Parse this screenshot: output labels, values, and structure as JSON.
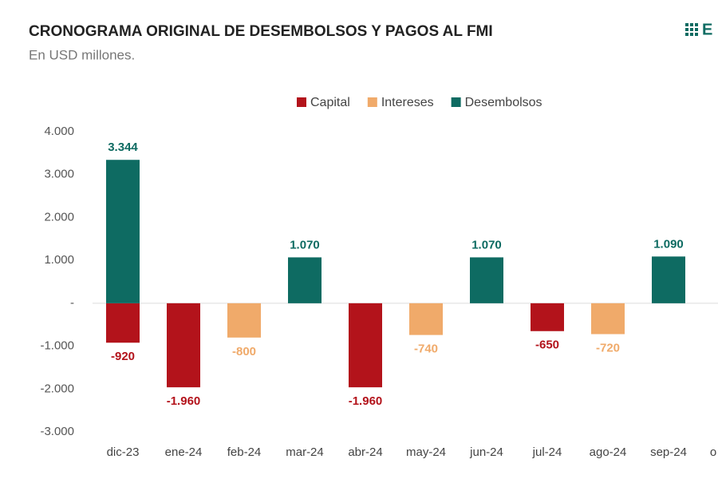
{
  "chart_data": {
    "type": "bar",
    "stacked": true,
    "title": "CRONOGRAMA ORIGINAL DE DESEMBOLSOS Y PAGOS AL FMI",
    "subtitle": "En USD millones.",
    "logo": "E",
    "categories": [
      "dic-23",
      "ene-24",
      "feb-24",
      "mar-24",
      "abr-24",
      "may-24",
      "jun-24",
      "jul-24",
      "ago-24",
      "sep-24",
      "o"
    ],
    "series": [
      {
        "name": "Capital",
        "color": "#b3131b",
        "values": [
          -920,
          -1960,
          null,
          null,
          -1960,
          null,
          null,
          -650,
          null,
          null,
          null
        ],
        "value_labels": [
          "-920",
          "-1.960",
          null,
          null,
          "-1.960",
          null,
          null,
          "-650",
          null,
          null,
          null
        ]
      },
      {
        "name": "Intereses",
        "color": "#f0aa6a",
        "values": [
          null,
          null,
          -800,
          null,
          null,
          -740,
          null,
          null,
          -720,
          null,
          null
        ],
        "value_labels": [
          null,
          null,
          "-800",
          null,
          null,
          "-740",
          null,
          null,
          "-720",
          null,
          null
        ]
      },
      {
        "name": "Desembolsos",
        "color": "#0e6b62",
        "values": [
          3344,
          null,
          null,
          1070,
          null,
          null,
          1070,
          null,
          null,
          1090,
          null
        ],
        "value_labels": [
          "3.344",
          null,
          null,
          "1.070",
          null,
          null,
          "1.070",
          null,
          null,
          "1.090",
          null
        ]
      }
    ],
    "ylim": [
      -3000,
      4000
    ],
    "yticks": [
      {
        "value": 4000,
        "label": "4.000"
      },
      {
        "value": 3000,
        "label": "3.000"
      },
      {
        "value": 2000,
        "label": "2.000"
      },
      {
        "value": 1000,
        "label": "1.000"
      },
      {
        "value": 0,
        "label": "-"
      },
      {
        "value": -1000,
        "label": "-1.000"
      },
      {
        "value": -2000,
        "label": "-2.000"
      },
      {
        "value": -3000,
        "label": "-3.000"
      }
    ],
    "legend": "top"
  }
}
